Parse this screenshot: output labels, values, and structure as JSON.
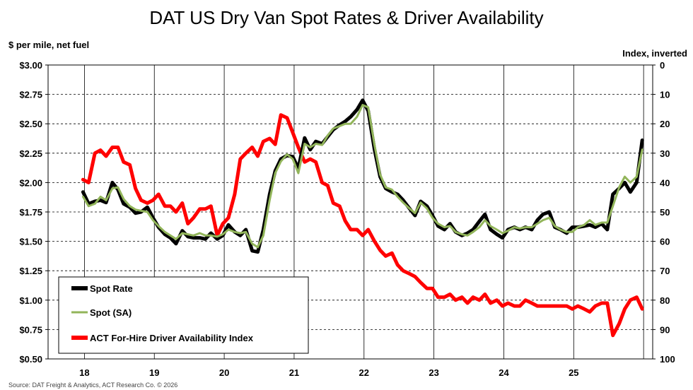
{
  "chart_data": {
    "type": "line",
    "title": "DAT US Dry Van Spot Rates & Driver Availability",
    "ylabel": "$ per mile, net fuel",
    "y2label": "Index, inverted",
    "ylim": [
      0.5,
      3.0
    ],
    "y2lim": [
      0,
      100
    ],
    "y2_inverted": true,
    "y_ticks": [
      "$3.00",
      "$2.75",
      "$2.50",
      "$2.25",
      "$2.00",
      "$1.75",
      "$1.50",
      "$1.25",
      "$1.00",
      "$0.75",
      "$0.50"
    ],
    "y2_ticks": [
      "0",
      "10",
      "20",
      "30",
      "40",
      "50",
      "60",
      "70",
      "80",
      "90",
      "100"
    ],
    "x_ticks": [
      "18",
      "19",
      "20",
      "21",
      "22",
      "23",
      "24",
      "25"
    ],
    "grid": true,
    "legend_position": "bottom-left",
    "source_note": "Source: DAT Freight & Analytics, ACT Research Co. © 2026",
    "series": [
      {
        "name": "Spot Rate",
        "color": "#000000",
        "axis": "left",
        "x": [
          2018.0,
          2018.08,
          2018.17,
          2018.25,
          2018.33,
          2018.42,
          2018.5,
          2018.58,
          2018.67,
          2018.75,
          2018.83,
          2018.92,
          2019.0,
          2019.08,
          2019.17,
          2019.25,
          2019.33,
          2019.42,
          2019.5,
          2019.58,
          2019.67,
          2019.75,
          2019.83,
          2019.92,
          2020.0,
          2020.08,
          2020.17,
          2020.25,
          2020.33,
          2020.42,
          2020.5,
          2020.58,
          2020.67,
          2020.75,
          2020.83,
          2020.92,
          2021.0,
          2021.08,
          2021.17,
          2021.25,
          2021.33,
          2021.42,
          2021.5,
          2021.58,
          2021.67,
          2021.75,
          2021.83,
          2021.92,
          2022.0,
          2022.08,
          2022.17,
          2022.25,
          2022.33,
          2022.42,
          2022.5,
          2022.58,
          2022.67,
          2022.75,
          2022.83,
          2022.92,
          2023.0,
          2023.08,
          2023.17,
          2023.25,
          2023.33,
          2023.42,
          2023.5,
          2023.58,
          2023.67,
          2023.75,
          2023.83,
          2023.92,
          2024.0,
          2024.08,
          2024.17,
          2024.25,
          2024.33,
          2024.42,
          2024.5,
          2024.58,
          2024.67,
          2024.75,
          2024.83,
          2024.92,
          2025.0,
          2025.08,
          2025.17,
          2025.25,
          2025.33,
          2025.42,
          2025.5,
          2025.58,
          2025.67,
          2025.75,
          2025.83,
          2025.92,
          2026.0
        ],
        "values": [
          1.92,
          1.82,
          1.84,
          1.85,
          1.83,
          2.0,
          1.94,
          1.82,
          1.79,
          1.74,
          1.75,
          1.79,
          1.7,
          1.62,
          1.56,
          1.53,
          1.48,
          1.59,
          1.54,
          1.53,
          1.53,
          1.52,
          1.57,
          1.52,
          1.55,
          1.64,
          1.58,
          1.55,
          1.6,
          1.42,
          1.41,
          1.6,
          1.9,
          2.1,
          2.2,
          2.23,
          2.22,
          2.12,
          2.38,
          2.28,
          2.35,
          2.33,
          2.39,
          2.45,
          2.49,
          2.52,
          2.56,
          2.62,
          2.7,
          2.61,
          2.28,
          2.05,
          1.95,
          1.92,
          1.9,
          1.85,
          1.78,
          1.72,
          1.84,
          1.8,
          1.72,
          1.63,
          1.6,
          1.65,
          1.58,
          1.55,
          1.57,
          1.6,
          1.67,
          1.73,
          1.6,
          1.56,
          1.53,
          1.6,
          1.62,
          1.6,
          1.62,
          1.6,
          1.68,
          1.73,
          1.75,
          1.62,
          1.6,
          1.57,
          1.62,
          1.62,
          1.63,
          1.64,
          1.62,
          1.65,
          1.6,
          1.9,
          1.95,
          2.0,
          1.92,
          2.0,
          2.36
        ]
      },
      {
        "name": "Spot (SA)",
        "color": "#92b55a",
        "axis": "left",
        "x": [
          2018.0,
          2018.08,
          2018.17,
          2018.25,
          2018.33,
          2018.42,
          2018.5,
          2018.58,
          2018.67,
          2018.75,
          2018.83,
          2018.92,
          2019.0,
          2019.08,
          2019.17,
          2019.25,
          2019.33,
          2019.42,
          2019.5,
          2019.58,
          2019.67,
          2019.75,
          2019.83,
          2019.92,
          2020.0,
          2020.08,
          2020.17,
          2020.25,
          2020.33,
          2020.42,
          2020.5,
          2020.58,
          2020.67,
          2020.75,
          2020.83,
          2020.92,
          2021.0,
          2021.08,
          2021.17,
          2021.25,
          2021.33,
          2021.42,
          2021.5,
          2021.58,
          2021.67,
          2021.75,
          2021.83,
          2021.92,
          2022.0,
          2022.08,
          2022.17,
          2022.25,
          2022.33,
          2022.42,
          2022.5,
          2022.58,
          2022.67,
          2022.75,
          2022.83,
          2022.92,
          2023.0,
          2023.08,
          2023.17,
          2023.25,
          2023.33,
          2023.42,
          2023.5,
          2023.58,
          2023.67,
          2023.75,
          2023.83,
          2023.92,
          2024.0,
          2024.08,
          2024.17,
          2024.25,
          2024.33,
          2024.42,
          2024.5,
          2024.58,
          2024.67,
          2024.75,
          2024.83,
          2024.92,
          2025.0,
          2025.08,
          2025.17,
          2025.25,
          2025.33,
          2025.42,
          2025.5,
          2025.58,
          2025.67,
          2025.75,
          2025.83,
          2025.92,
          2026.0
        ],
        "values": [
          1.88,
          1.8,
          1.82,
          1.88,
          1.85,
          1.95,
          1.96,
          1.86,
          1.8,
          1.77,
          1.76,
          1.75,
          1.68,
          1.63,
          1.58,
          1.55,
          1.52,
          1.57,
          1.56,
          1.55,
          1.57,
          1.55,
          1.55,
          1.54,
          1.56,
          1.6,
          1.58,
          1.57,
          1.58,
          1.48,
          1.45,
          1.55,
          1.85,
          2.08,
          2.18,
          2.24,
          2.2,
          2.08,
          2.33,
          2.3,
          2.33,
          2.32,
          2.4,
          2.46,
          2.48,
          2.5,
          2.5,
          2.56,
          2.66,
          2.64,
          2.32,
          2.07,
          1.96,
          1.94,
          1.88,
          1.83,
          1.78,
          1.74,
          1.83,
          1.78,
          1.7,
          1.65,
          1.62,
          1.63,
          1.58,
          1.56,
          1.55,
          1.58,
          1.62,
          1.68,
          1.63,
          1.6,
          1.57,
          1.59,
          1.62,
          1.61,
          1.62,
          1.62,
          1.65,
          1.68,
          1.7,
          1.63,
          1.6,
          1.58,
          1.58,
          1.62,
          1.64,
          1.68,
          1.64,
          1.66,
          1.66,
          1.8,
          1.96,
          2.05,
          2.0,
          2.05,
          2.28
        ]
      },
      {
        "name": "ACT For-Hire Driver Availability Index",
        "color": "#ff0000",
        "axis": "right",
        "x": [
          2018.0,
          2018.08,
          2018.17,
          2018.25,
          2018.33,
          2018.42,
          2018.5,
          2018.58,
          2018.67,
          2018.75,
          2018.83,
          2018.92,
          2019.0,
          2019.08,
          2019.17,
          2019.25,
          2019.33,
          2019.42,
          2019.5,
          2019.58,
          2019.67,
          2019.75,
          2019.83,
          2019.92,
          2020.0,
          2020.08,
          2020.17,
          2020.25,
          2020.33,
          2020.42,
          2020.5,
          2020.58,
          2020.67,
          2020.75,
          2020.83,
          2020.92,
          2021.0,
          2021.08,
          2021.17,
          2021.25,
          2021.33,
          2021.42,
          2021.5,
          2021.58,
          2021.67,
          2021.75,
          2021.83,
          2021.92,
          2022.0,
          2022.08,
          2022.17,
          2022.25,
          2022.33,
          2022.42,
          2022.5,
          2022.58,
          2022.67,
          2022.75,
          2022.83,
          2022.92,
          2023.0,
          2023.08,
          2023.17,
          2023.25,
          2023.33,
          2023.42,
          2023.5,
          2023.58,
          2023.67,
          2023.75,
          2023.83,
          2023.92,
          2024.0,
          2024.08,
          2024.17,
          2024.25,
          2024.33,
          2024.42,
          2024.5,
          2024.58,
          2024.67,
          2024.75,
          2024.83,
          2024.92,
          2025.0,
          2025.08,
          2025.17,
          2025.25,
          2025.33,
          2025.42,
          2025.5,
          2025.58,
          2025.67,
          2025.75,
          2025.83,
          2025.92,
          2026.0
        ],
        "values": [
          39,
          40,
          30,
          29,
          31,
          28,
          28,
          33,
          34,
          42,
          46,
          47,
          46,
          44,
          48,
          48,
          50,
          47,
          54,
          52,
          49,
          49,
          48,
          58,
          54,
          52,
          44,
          32,
          30,
          28,
          31,
          26,
          25,
          27,
          17,
          18,
          23,
          28,
          33,
          32,
          33,
          40,
          41,
          47,
          48,
          53,
          56,
          56,
          58,
          56,
          60,
          63,
          65,
          64,
          68,
          70,
          71,
          72,
          74,
          76,
          76,
          79,
          79,
          78,
          80,
          79,
          81,
          79,
          80,
          78,
          81,
          80,
          82,
          81,
          82,
          82,
          80,
          81,
          82,
          82,
          82,
          82,
          82,
          82,
          83,
          82,
          83,
          84,
          82,
          81,
          81,
          92,
          88,
          83,
          80,
          79,
          83
        ]
      }
    ]
  }
}
